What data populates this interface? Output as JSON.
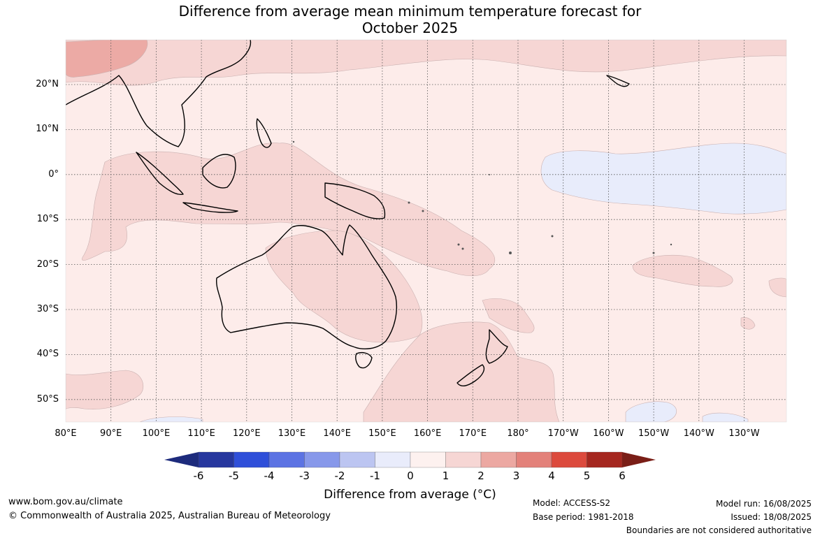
{
  "title": {
    "line1": "Difference from average mean minimum temperature forecast for",
    "line2": "October 2025"
  },
  "map": {
    "latitude_labels": [
      "20°N",
      "10°N",
      "0°",
      "10°S",
      "20°S",
      "30°S",
      "40°S",
      "50°S"
    ],
    "longitude_labels": [
      "80°E",
      "90°E",
      "100°E",
      "110°E",
      "120°E",
      "130°E",
      "140°E",
      "150°E",
      "160°E",
      "170°E",
      "180°",
      "170°W",
      "160°W",
      "150°W",
      "140°W",
      "130°W"
    ],
    "anomaly_zones": [
      {
        "label": "0 to 1",
        "color": "#fdecea",
        "role": "background"
      },
      {
        "label": "1 to 2",
        "color": "#f6d6d4",
        "role": "widespread patches"
      },
      {
        "label": "2 to 3",
        "color": "#ecaaa5",
        "role": "small patch north-west"
      },
      {
        "label": "-1 to 0",
        "color": "#e8ecfb",
        "role": "equatorial central Pacific and far south"
      }
    ]
  },
  "colorbar": {
    "title": "Difference from average (°C)",
    "tick_labels": [
      "-6",
      "-5",
      "-4",
      "-3",
      "-2",
      "-1",
      "0",
      "1",
      "2",
      "3",
      "4",
      "5",
      "6"
    ],
    "colors": [
      "#26379e",
      "#2f4fd9",
      "#5c73e3",
      "#8798ea",
      "#bcc5f1",
      "#e9ecfb",
      "#fdf1ef",
      "#f6d6d4",
      "#eca8a2",
      "#e3817a",
      "#dc4a3d",
      "#a5271f"
    ],
    "low_extend_color": "#1d2b7c",
    "high_extend_color": "#7a1e17"
  },
  "footer": {
    "website": "www.bom.gov.au/climate",
    "copyright": "© Commonwealth of Australia 2025, Australian Bureau of Meteorology",
    "model": "Model: ACCESS-S2",
    "base_period": "Base period: 1981-2018",
    "model_run": "Model run: 16/08/2025",
    "issued": "Issued: 18/08/2025",
    "disclaimer": "Boundaries are not considered authoritative"
  }
}
